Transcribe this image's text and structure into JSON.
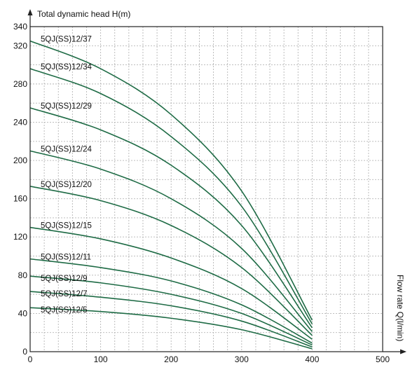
{
  "chart_data": {
    "type": "line",
    "ylabel": "Total dynamic head H(m)",
    "xlabel": "Flow rate Q(l/min)",
    "xlim": [
      0,
      500
    ],
    "ylim": [
      0,
      340
    ],
    "x_ticks": [
      "0",
      "100",
      "200",
      "300",
      "400",
      "500"
    ],
    "y_ticks": [
      "0",
      "40",
      "80",
      "120",
      "160",
      "200",
      "240",
      "280",
      "320",
      "340"
    ],
    "grid": true,
    "line_color": "#1e6b45",
    "x": [
      0,
      100,
      200,
      300,
      400
    ],
    "series": [
      {
        "name": "5QJ(SS)12/37",
        "values": [
          325,
          296,
          248,
          168,
          33
        ]
      },
      {
        "name": "5QJ(SS)12/34",
        "values": [
          296,
          270,
          225,
          152,
          29
        ]
      },
      {
        "name": "5QJ(SS)12/29",
        "values": [
          255,
          232,
          195,
          132,
          25
        ]
      },
      {
        "name": "5QJ(SS)12/24",
        "values": [
          210,
          191,
          160,
          108,
          21
        ]
      },
      {
        "name": "5QJ(SS)12/20",
        "values": [
          173,
          158,
          132,
          88,
          17
        ]
      },
      {
        "name": "5QJ(SS)12/15",
        "values": [
          130,
          118,
          98,
          66,
          13
        ]
      },
      {
        "name": "5QJ(SS)12/11",
        "values": [
          97,
          88,
          74,
          49,
          9
        ]
      },
      {
        "name": "5QJ(SS)12/9",
        "values": [
          79,
          72,
          60,
          40,
          7
        ]
      },
      {
        "name": "5QJ(SS)12/7",
        "values": [
          63,
          57,
          48,
          32,
          5
        ]
      },
      {
        "name": "5QJ(SS)12/5",
        "values": [
          46,
          42,
          35,
          23,
          3
        ]
      }
    ]
  }
}
